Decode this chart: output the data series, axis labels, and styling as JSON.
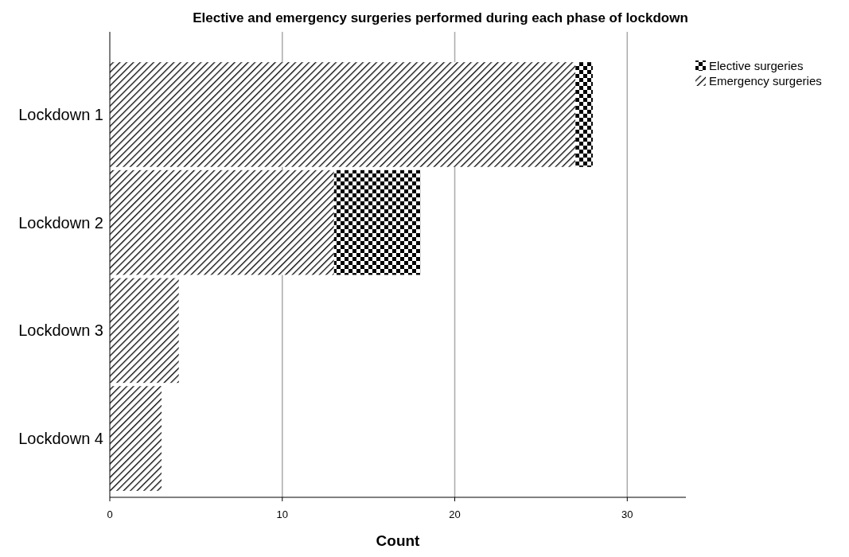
{
  "chart_data": {
    "type": "bar",
    "title": "Elective and emergency surgeries performed during each phase of lockdown",
    "xlabel": "Count",
    "orientation": "horizontal",
    "stacked": true,
    "categories": [
      "Lockdown 1",
      "Lockdown 2",
      "Lockdown 3",
      "Lockdown 4"
    ],
    "series": [
      {
        "name": "Emergency surgeries",
        "color": "#000000",
        "values": [
          27,
          13,
          4,
          3
        ]
      },
      {
        "name": "Elective surgeries",
        "color": "#000000",
        "values": [
          1,
          5,
          0,
          0
        ]
      }
    ],
    "xlim": [
      0,
      33.4
    ],
    "xticks": [
      0,
      10,
      20,
      30
    ],
    "grid": "x",
    "legend": "top right"
  }
}
